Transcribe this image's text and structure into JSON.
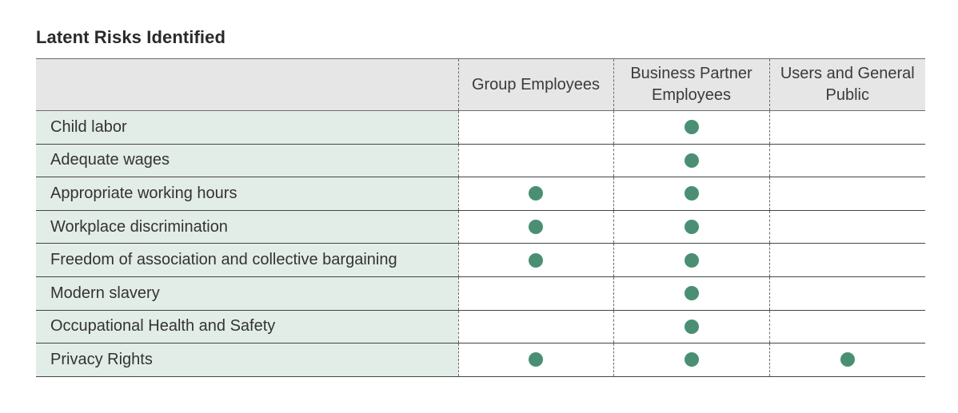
{
  "title": "Latent Risks Identified",
  "colors": {
    "marker": "#4a8f74",
    "header_bg": "#e6e6e7",
    "row_label_bg": "#e3ede7"
  },
  "columns": [
    "Group Employees",
    "Business Partner Employees",
    "Users and General Public"
  ],
  "marker_icon": "filled-circle",
  "rows": [
    {
      "risk": "Child labor",
      "marks": [
        false,
        true,
        false
      ]
    },
    {
      "risk": "Adequate wages",
      "marks": [
        false,
        true,
        false
      ]
    },
    {
      "risk": "Appropriate working hours",
      "marks": [
        true,
        true,
        false
      ]
    },
    {
      "risk": "Workplace discrimination",
      "marks": [
        true,
        true,
        false
      ]
    },
    {
      "risk": "Freedom of association and collective bargaining",
      "marks": [
        true,
        true,
        false
      ]
    },
    {
      "risk": "Modern slavery",
      "marks": [
        false,
        true,
        false
      ]
    },
    {
      "risk": "Occupational Health and Safety",
      "marks": [
        false,
        true,
        false
      ]
    },
    {
      "risk": "Privacy Rights",
      "marks": [
        true,
        true,
        true
      ]
    }
  ]
}
